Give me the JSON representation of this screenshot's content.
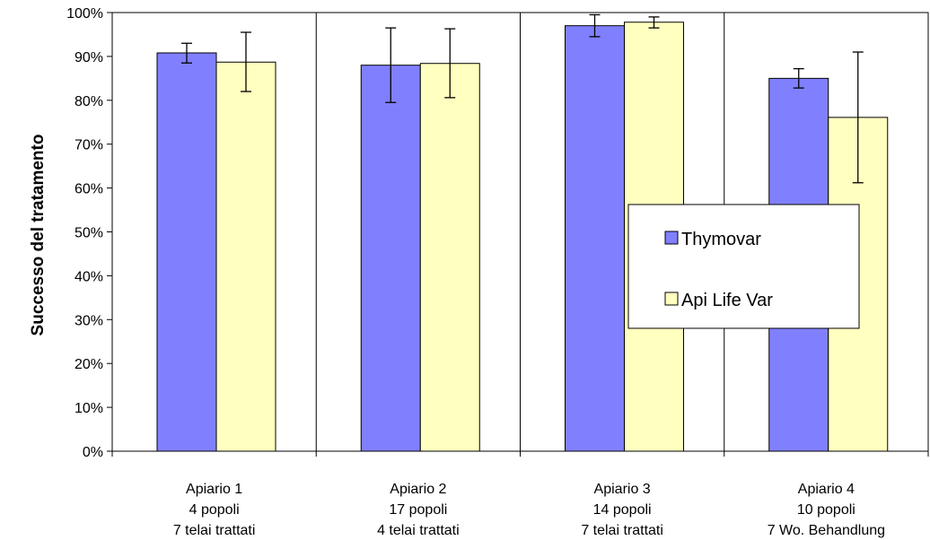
{
  "chart_data": {
    "type": "bar",
    "title": "",
    "xlabel": "",
    "ylabel": "Successo del tratamento",
    "ylim": [
      0,
      100
    ],
    "y_ticks": [
      "0%",
      "10%",
      "20%",
      "30%",
      "40%",
      "50%",
      "60%",
      "70%",
      "80%",
      "90%",
      "100%"
    ],
    "grid": "vertical-between-categories",
    "categories": [
      [
        "Apiario 1",
        "4 popoli",
        "7 telai trattati"
      ],
      [
        "Apiario 2",
        "17 popoli",
        "4 telai trattati"
      ],
      [
        "Apiario 3",
        "14 popoli",
        "7 telai trattati"
      ],
      [
        "Apiario 4",
        "10 popoli",
        "7 Wo. Behandlung"
      ]
    ],
    "series": [
      {
        "name": "Thymovar",
        "color": "#8080ff",
        "values": [
          90.8,
          88.0,
          97.0,
          85.0
        ],
        "error_low": [
          88.5,
          79.5,
          94.5,
          82.8
        ],
        "error_high": [
          93.0,
          96.5,
          99.5,
          87.2
        ]
      },
      {
        "name": "Api Life Var",
        "color": "#ffffc0",
        "values": [
          88.7,
          88.4,
          97.8,
          76.1
        ],
        "error_low": [
          82.0,
          80.6,
          96.5,
          61.2
        ],
        "error_high": [
          95.5,
          96.3,
          99.0,
          91.0
        ]
      }
    ],
    "legend_position": "right-middle"
  }
}
